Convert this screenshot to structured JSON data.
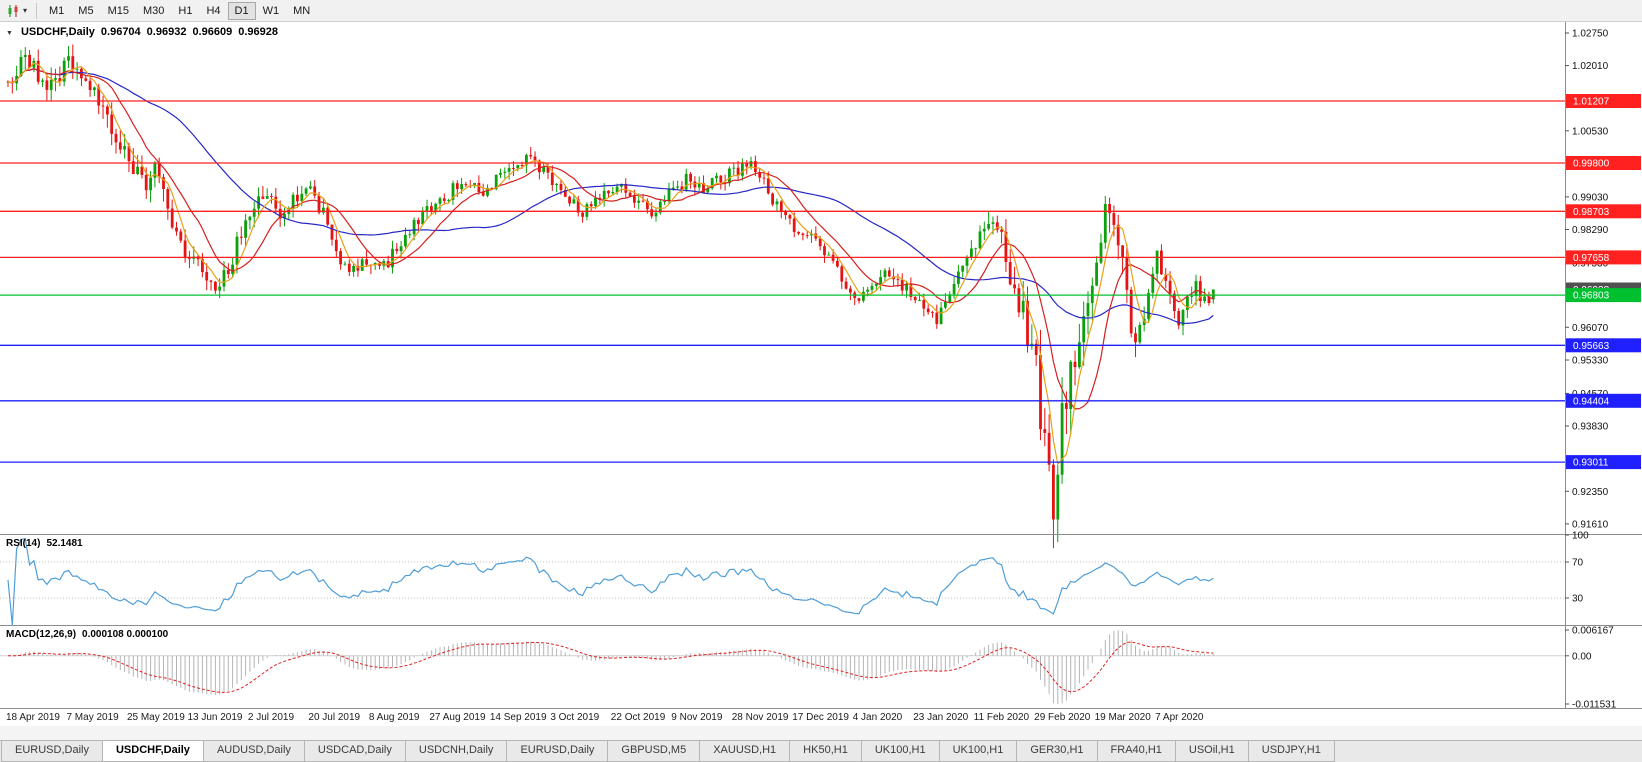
{
  "toolbar": {
    "chart_icon": "candlestick-chart-icon",
    "dropdown_icon": "chevron-down-icon",
    "timeframes": [
      "M1",
      "M5",
      "M15",
      "M30",
      "H1",
      "H4",
      "D1",
      "W1",
      "MN"
    ],
    "active_timeframe": "D1"
  },
  "symbol_header": {
    "title": "USDCHF,Daily",
    "open": "0.96704",
    "high": "0.96932",
    "low": "0.96609",
    "close": "0.96928"
  },
  "price_pane": {
    "scale_min": 0.9138,
    "scale_max": 1.03,
    "y_ticks": [
      "1.02750",
      "1.02010",
      "1.00530",
      "0.99030",
      "0.98290",
      "0.97530",
      "0.96070",
      "0.95330",
      "0.94570",
      "0.93830",
      "0.92350",
      "0.91610"
    ],
    "hlines": [
      {
        "value": 1.01207,
        "label": "1.01207",
        "color": "#FF2020",
        "kind": "resistance"
      },
      {
        "value": 0.998,
        "label": "0.99800",
        "color": "#FF2020",
        "kind": "resistance"
      },
      {
        "value": 0.98703,
        "label": "0.98703",
        "color": "#FF2020",
        "kind": "resistance"
      },
      {
        "value": 0.97658,
        "label": "0.97658",
        "color": "#FF2020",
        "kind": "resistance"
      },
      {
        "value": 0.96803,
        "label": "0.96803",
        "color": "#00C030",
        "kind": "current-level"
      },
      {
        "value": 0.95663,
        "label": "0.95663",
        "color": "#2020FF",
        "kind": "support"
      },
      {
        "value": 0.94404,
        "label": "0.94404",
        "color": "#2020FF",
        "kind": "support"
      },
      {
        "value": 0.93011,
        "label": "0.93011",
        "color": "#2020FF",
        "kind": "support"
      }
    ],
    "current_price": {
      "value": 0.96928,
      "label": "0.96928",
      "color": "#505050"
    },
    "bull_color": "#0CA00C",
    "bear_color": "#E41414",
    "moving_averages": [
      {
        "period": 40,
        "color": "#2828C8"
      },
      {
        "period": 12,
        "color": "#D42020"
      },
      {
        "period": 5,
        "color": "#E8A018"
      }
    ],
    "candles": {
      "count": 280,
      "seed": 20200505,
      "last_ohlc": [
        0.96704,
        0.96932,
        0.96609,
        0.96928
      ],
      "spike_low": {
        "index": 242,
        "low": 0.9163
      },
      "path_anchors": [
        [
          0,
          1.0165
        ],
        [
          3,
          1.0215
        ],
        [
          6,
          1.019
        ],
        [
          9,
          1.0155
        ],
        [
          12,
          1.019
        ],
        [
          15,
          1.0205
        ],
        [
          18,
          1.0165
        ],
        [
          21,
          1.011
        ],
        [
          24,
          1.0045
        ],
        [
          28,
          0.9985
        ],
        [
          31,
          0.993
        ],
        [
          34,
          0.996
        ],
        [
          37,
          0.987
        ],
        [
          40,
          0.98
        ],
        [
          44,
          0.9745
        ],
        [
          48,
          0.97
        ],
        [
          51,
          0.974
        ],
        [
          54,
          0.982
        ],
        [
          57,
          0.988
        ],
        [
          60,
          0.991
        ],
        [
          63,
          0.986
        ],
        [
          66,
          0.989
        ],
        [
          70,
          0.9925
        ],
        [
          73,
          0.9865
        ],
        [
          76,
          0.977
        ],
        [
          79,
          0.9718
        ],
        [
          82,
          0.977
        ],
        [
          86,
          0.973
        ],
        [
          90,
          0.979
        ],
        [
          94,
          0.9845
        ],
        [
          98,
          0.9882
        ],
        [
          102,
          0.991
        ],
        [
          106,
          0.9945
        ],
        [
          110,
          0.99
        ],
        [
          114,
          0.995
        ],
        [
          117,
          0.9975
        ],
        [
          121,
          0.999
        ],
        [
          125,
          0.995
        ],
        [
          129,
          0.9905
        ],
        [
          133,
          0.987
        ],
        [
          137,
          0.99
        ],
        [
          141,
          0.993
        ],
        [
          145,
          0.989
        ],
        [
          149,
          0.987
        ],
        [
          153,
          0.9915
        ],
        [
          157,
          0.994
        ],
        [
          161,
          0.992
        ],
        [
          165,
          0.9945
        ],
        [
          169,
          0.996
        ],
        [
          172,
          0.9975
        ],
        [
          175,
          0.993
        ],
        [
          178,
          0.988
        ],
        [
          182,
          0.9835
        ],
        [
          186,
          0.9805
        ],
        [
          190,
          0.9765
        ],
        [
          194,
          0.971
        ],
        [
          197,
          0.9668
        ],
        [
          200,
          0.97
        ],
        [
          204,
          0.9732
        ],
        [
          208,
          0.969
        ],
        [
          212,
          0.9652
        ],
        [
          215,
          0.9628
        ],
        [
          218,
          0.9684
        ],
        [
          221,
          0.9746
        ],
        [
          224,
          0.98
        ],
        [
          227,
          0.984
        ],
        [
          230,
          0.9806
        ],
        [
          232,
          0.9735
        ],
        [
          235,
          0.964
        ],
        [
          237,
          0.956
        ],
        [
          239,
          0.943
        ],
        [
          241,
          0.93
        ],
        [
          242,
          0.923
        ],
        [
          243,
          0.933
        ],
        [
          245,
          0.943
        ],
        [
          247,
          0.953
        ],
        [
          249,
          0.963
        ],
        [
          251,
          0.973
        ],
        [
          253,
          0.983
        ],
        [
          255,
          0.9885
        ],
        [
          257,
          0.98
        ],
        [
          259,
          0.97
        ],
        [
          260,
          0.961
        ],
        [
          261,
          0.956
        ],
        [
          263,
          0.965
        ],
        [
          265,
          0.972
        ],
        [
          266,
          0.9758
        ],
        [
          268,
          0.97
        ],
        [
          270,
          0.965
        ],
        [
          271,
          0.9622
        ],
        [
          273,
          0.968
        ],
        [
          275,
          0.97
        ],
        [
          277,
          0.966
        ],
        [
          279,
          0.969
        ]
      ],
      "vol_anchors": [
        [
          0,
          0.0046
        ],
        [
          30,
          0.0046
        ],
        [
          60,
          0.0036
        ],
        [
          100,
          0.003
        ],
        [
          150,
          0.0028
        ],
        [
          196,
          0.0028
        ],
        [
          215,
          0.003
        ],
        [
          230,
          0.0048
        ],
        [
          236,
          0.0085
        ],
        [
          241,
          0.0115
        ],
        [
          247,
          0.009
        ],
        [
          253,
          0.0075
        ],
        [
          259,
          0.006
        ],
        [
          266,
          0.0046
        ],
        [
          279,
          0.0034
        ]
      ]
    }
  },
  "rsi_pane": {
    "name": "RSI(14)",
    "value": "52.1481",
    "period": 14,
    "levels": [
      {
        "value": 100,
        "label": "100"
      },
      {
        "value": 70,
        "label": "70"
      },
      {
        "value": 30,
        "label": "30"
      }
    ],
    "line_color": "#4F9ED8"
  },
  "macd_pane": {
    "name": "MACD(12,26,9)",
    "values": "0.000108 0.000100",
    "fast": 12,
    "slow": 26,
    "signal": 9,
    "axis_max": {
      "value": 0.006167,
      "label": "0.006167"
    },
    "axis_zero": {
      "value": 0,
      "label": "0.00"
    },
    "axis_min": {
      "value": -0.011531,
      "label": "-0.011531"
    },
    "histogram_color": "#B4B4B4",
    "signal_color": "#E02020"
  },
  "date_axis": {
    "candles_per_label": 14,
    "labels": [
      "18 Apr 2019",
      "7 May 2019",
      "25 May 2019",
      "13 Jun 2019",
      "2 Jul 2019",
      "20 Jul 2019",
      "8 Aug 2019",
      "27 Aug 2019",
      "14 Sep 2019",
      "3 Oct 2019",
      "22 Oct 2019",
      "9 Nov 2019",
      "28 Nov 2019",
      "17 Dec 2019",
      "4 Jan 2020",
      "23 Jan 2020",
      "11 Feb 2020",
      "29 Feb 2020",
      "19 Mar 2020",
      "7 Apr 2020"
    ]
  },
  "tabs": {
    "items": [
      "EURUSD,Daily",
      "USDCHF,Daily",
      "AUDUSD,Daily",
      "USDCAD,Daily",
      "USDCNH,Daily",
      "EURUSD,Daily",
      "GBPUSD,M5",
      "XAUUSD,H1",
      "HK50,H1",
      "UK100,H1",
      "UK100,H1",
      "GER30,H1",
      "FRA40,H1",
      "USOil,H1",
      "USDJPY,H1"
    ],
    "active_index": 1
  }
}
